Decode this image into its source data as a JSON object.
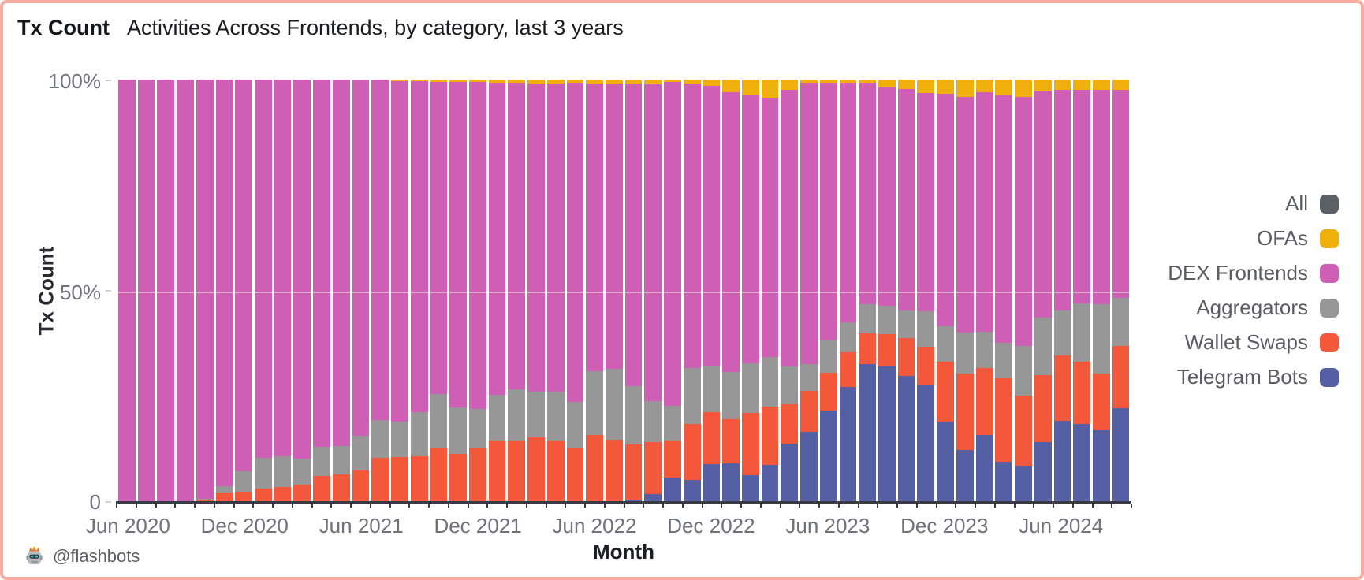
{
  "frame": {
    "border_color": "#F8ACA0",
    "background": "#FFFFFF"
  },
  "header": {
    "title": "Tx Count",
    "subtitle": "Activities Across Frontends, by category, last 3 years"
  },
  "axes": {
    "y_title": "Tx Count",
    "x_title": "Month",
    "y_ticks": [
      "100%",
      "50%",
      "0"
    ],
    "x_ticks": [
      "Jun 2020",
      "Dec 2020",
      "Jun 2021",
      "Dec 2021",
      "Jun 2022",
      "Dec 2022",
      "Jun 2023",
      "Dec 2023",
      "Jun 2024"
    ]
  },
  "legend": {
    "items": [
      {
        "label": "All",
        "color": "#5A6066"
      },
      {
        "label": "OFAs",
        "color": "#EFB00E"
      },
      {
        "label": "DEX Frontends",
        "color": "#CE5FB4"
      },
      {
        "label": "Aggregators",
        "color": "#979797"
      },
      {
        "label": "Wallet Swaps",
        "color": "#F4583B"
      },
      {
        "label": "Telegram Bots",
        "color": "#5560A4"
      }
    ]
  },
  "footer": {
    "icon": "flashbots-robot-icon",
    "handle": "@flashbots"
  },
  "chart_data": {
    "type": "bar",
    "stacked": true,
    "normalized": "percent",
    "title": "Tx Count — Activities Across Frontends, by category, last 3 years",
    "xlabel": "Month",
    "ylabel": "Tx Count",
    "ylim": [
      0,
      100
    ],
    "grid": "faint 50% line",
    "legend_position": "right",
    "categories": [
      "Jun 2020",
      "Jul 2020",
      "Aug 2020",
      "Sep 2020",
      "Oct 2020",
      "Nov 2020",
      "Dec 2020",
      "Jan 2021",
      "Feb 2021",
      "Mar 2021",
      "Apr 2021",
      "May 2021",
      "Jun 2021",
      "Jul 2021",
      "Aug 2021",
      "Sep 2021",
      "Oct 2021",
      "Nov 2021",
      "Dec 2021",
      "Jan 2022",
      "Feb 2022",
      "Mar 2022",
      "Apr 2022",
      "May 2022",
      "Jun 2022",
      "Jul 2022",
      "Aug 2022",
      "Sep 2022",
      "Oct 2022",
      "Nov 2022",
      "Dec 2022",
      "Jan 2023",
      "Feb 2023",
      "Mar 2023",
      "Apr 2023",
      "May 2023",
      "Jun 2023",
      "Jul 2023",
      "Aug 2023",
      "Sep 2023",
      "Oct 2023",
      "Nov 2023",
      "Dec 2023",
      "Jan 2024",
      "Feb 2024",
      "Mar 2024",
      "Apr 2024",
      "May 2024",
      "Jun 2024",
      "Jul 2024",
      "Aug 2024",
      "Sep 2024"
    ],
    "series": [
      {
        "name": "Telegram Bots",
        "color": "#5560A4",
        "values": [
          0,
          0,
          0,
          0,
          0,
          0,
          0,
          0,
          0,
          0,
          0,
          0,
          0,
          0,
          0,
          0,
          0,
          0,
          0,
          0,
          0,
          0,
          0,
          0,
          0,
          0.4,
          0.7,
          2,
          6,
          5.4,
          9.1,
          9.4,
          6.6,
          9,
          14,
          16.7,
          21.7,
          27.3,
          32.7,
          32.2,
          30,
          27.9,
          19.1,
          12.4,
          16.1,
          9.7,
          8.7,
          14.4,
          19.4,
          18.7,
          17.1,
          22.4
        ]
      },
      {
        "name": "Wallet Swaps",
        "color": "#F4583B",
        "values": [
          0,
          0,
          0,
          0,
          0.7,
          2.4,
          2.6,
          3.3,
          3.7,
          4.2,
          6.4,
          6.7,
          7.6,
          10.7,
          10.8,
          11,
          13,
          11.5,
          13,
          14.8,
          14.8,
          15.5,
          14.8,
          13.1,
          16.1,
          14.5,
          13,
          12.3,
          8.7,
          13.2,
          12.4,
          10.3,
          14.7,
          13.7,
          9.3,
          9.7,
          9,
          8.3,
          7.3,
          7.6,
          9,
          9,
          14.2,
          18.1,
          15.7,
          19.7,
          16.7,
          15.7,
          15.4,
          14.7,
          13.4,
          14.7
        ]
      },
      {
        "name": "Aggregators",
        "color": "#979797",
        "values": [
          0,
          0,
          0,
          0,
          0.3,
          1.6,
          4.9,
          7.4,
          7.3,
          6.2,
          6.8,
          6.8,
          8.3,
          8.8,
          8.4,
          10.4,
          12.7,
          11,
          9.1,
          10.7,
          12,
          10.7,
          11.4,
          10.7,
          15,
          16.7,
          13.8,
          9.7,
          8.3,
          13.3,
          11,
          11.3,
          11.7,
          11.7,
          9,
          6.3,
          7.7,
          7,
          7,
          6.8,
          6.4,
          8.4,
          8.4,
          9.7,
          8.7,
          8.4,
          11.7,
          13.7,
          10.7,
          13.7,
          16.4,
          11.4
        ]
      },
      {
        "name": "DEX Frontends",
        "color": "#CE5FB4",
        "values": [
          100,
          100,
          100,
          100,
          99,
          96,
          92.5,
          89.3,
          89,
          89.6,
          86.8,
          86.5,
          84.1,
          80.5,
          80.5,
          78.2,
          73.8,
          77,
          77.3,
          73.7,
          72.4,
          72.9,
          72.9,
          75.4,
          67.9,
          67.4,
          71.5,
          74.8,
          76.4,
          67.2,
          66,
          66.1,
          63.5,
          61.4,
          65.2,
          66.5,
          60.8,
          56.7,
          52.3,
          51.5,
          52.4,
          51.5,
          55,
          55.8,
          56.5,
          58.5,
          58.9,
          53.5,
          52,
          50.4,
          50.6,
          49
        ]
      },
      {
        "name": "OFAs",
        "color": "#EFB00E",
        "values": [
          0,
          0,
          0,
          0,
          0,
          0,
          0,
          0,
          0,
          0,
          0,
          0,
          0,
          0,
          0.3,
          0.4,
          0.5,
          0.5,
          0.6,
          0.8,
          0.8,
          0.9,
          0.9,
          0.8,
          1,
          1,
          1,
          1.2,
          0.6,
          0.9,
          1.5,
          2.9,
          3.5,
          4.2,
          2.5,
          0.8,
          0.8,
          0.7,
          0.7,
          1.9,
          2.2,
          3.2,
          3.3,
          4,
          3,
          3.7,
          4,
          2.7,
          2.5,
          2.5,
          2.5,
          2.5
        ]
      }
    ],
    "note_series_not_plotted": [
      "All"
    ]
  }
}
